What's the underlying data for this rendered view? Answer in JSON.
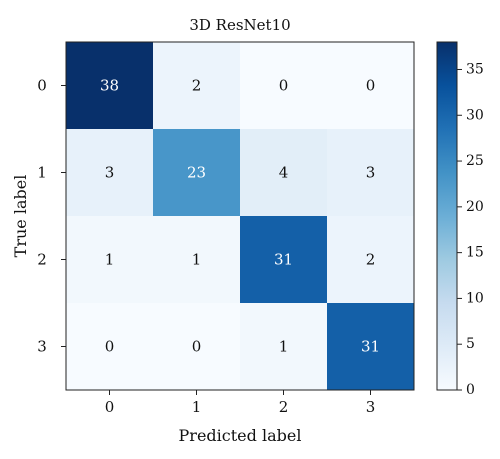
{
  "chart_data": {
    "type": "heatmap",
    "title": "3D ResNet10",
    "xlabel": "Predicted label",
    "ylabel": "True label",
    "x_categories": [
      "0",
      "1",
      "2",
      "3"
    ],
    "y_categories": [
      "0",
      "1",
      "2",
      "3"
    ],
    "values": [
      [
        38,
        2,
        0,
        0
      ],
      [
        3,
        23,
        4,
        3
      ],
      [
        1,
        1,
        31,
        2
      ],
      [
        0,
        0,
        1,
        31
      ]
    ],
    "colormap": "Blues",
    "color_range": [
      0,
      38
    ],
    "colorbar_ticks": [
      "0",
      "5",
      "10",
      "15",
      "20",
      "25",
      "30",
      "35"
    ],
    "colors": {
      "low": "#f7fbff",
      "high": "#08306b",
      "dark_text": "#111111",
      "light_text": "#ffffff"
    }
  }
}
